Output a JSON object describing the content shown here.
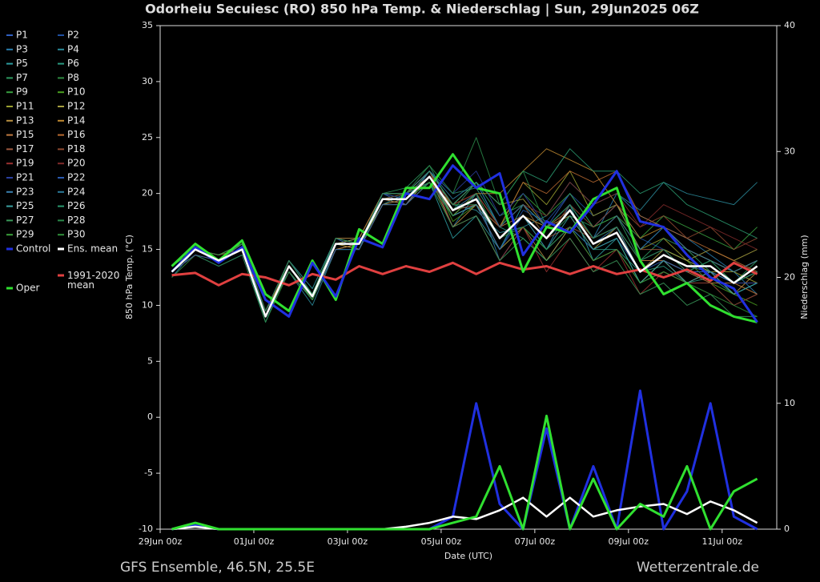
{
  "chart_data": {
    "type": "line",
    "title": "Odorheiu Secuiesc  (RO)  850 hPa Temp. & Niederschlag | Sun, 29Jun2025 06Z",
    "xlabel": "Date (UTC)",
    "ylabel": "850 hPa Temp. (°C)",
    "y2label": "Niederschlag (mm)",
    "source": "GFS Ensemble, 46.5N, 25.5E",
    "credit": "Wetterzentrale.de",
    "x": [
      6,
      18,
      30,
      42,
      54,
      66,
      78,
      90,
      102,
      114,
      126,
      138,
      150,
      162,
      174,
      186,
      198,
      210,
      222,
      234,
      246,
      258,
      270,
      282,
      294,
      306
    ],
    "xlim": [
      0,
      316
    ],
    "xticks": [
      {
        "value": 0,
        "label": "29Jun 00z"
      },
      {
        "value": 48,
        "label": "01Jul 00z"
      },
      {
        "value": 96,
        "label": "03Jul 00z"
      },
      {
        "value": 144,
        "label": "05Jul 00z"
      },
      {
        "value": 192,
        "label": "07Jul 00z"
      },
      {
        "value": 240,
        "label": "09Jul 00z"
      },
      {
        "value": 288,
        "label": "11Jul 00z"
      }
    ],
    "ylim": [
      -10,
      35
    ],
    "yticks": [
      -10,
      -5,
      0,
      5,
      10,
      15,
      20,
      25,
      30,
      35
    ],
    "y2lim": [
      0,
      40
    ],
    "y2ticks": [
      0,
      10,
      20,
      30,
      40
    ],
    "series": [
      {
        "name": "P1",
        "color": "#3060c0",
        "values": [
          13.5,
          15,
          14.5,
          15.5,
          9.5,
          13,
          10.5,
          16,
          15,
          20,
          19,
          22,
          19,
          21,
          17,
          19,
          17,
          20,
          17,
          19,
          15,
          17,
          15,
          14,
          13,
          14
        ]
      },
      {
        "name": "P2",
        "color": "#1f4fa0",
        "values": [
          13,
          14.5,
          13.5,
          14.5,
          8.5,
          13.5,
          11,
          15,
          15.5,
          19,
          19.5,
          21,
          18,
          19,
          15,
          18.5,
          17.5,
          20,
          18,
          19,
          16,
          15,
          14,
          13,
          11,
          12
        ]
      },
      {
        "name": "P3",
        "color": "#2a7fb0",
        "values": [
          12.5,
          15,
          14,
          15,
          9,
          14,
          11,
          15.5,
          16,
          20,
          20,
          22,
          17,
          20,
          14,
          17,
          15,
          19,
          16,
          20,
          18,
          17,
          16,
          14.5,
          13,
          11
        ]
      },
      {
        "name": "P4",
        "color": "#2a8a9a",
        "values": [
          13,
          15.5,
          14,
          15.5,
          9,
          13,
          10,
          15,
          15,
          19.5,
          19,
          21.5,
          19,
          18.5,
          16.5,
          17,
          18,
          21,
          19,
          20,
          18.5,
          21,
          20,
          19.5,
          19,
          21
        ]
      },
      {
        "name": "P5",
        "color": "#2d9ca0",
        "values": [
          13.5,
          15,
          14,
          15,
          9.5,
          14,
          11.5,
          16,
          15.5,
          19,
          20,
          21,
          16,
          18,
          15,
          19,
          17,
          19,
          14,
          16,
          12,
          14,
          13,
          14,
          12,
          13
        ]
      },
      {
        "name": "P6",
        "color": "#2a9a80",
        "values": [
          13,
          15,
          14.5,
          15,
          8.5,
          13.5,
          10.5,
          15.5,
          15,
          20,
          19.5,
          22,
          20,
          20.5,
          17,
          16,
          14,
          17,
          15,
          15,
          13,
          13.5,
          12,
          12.5,
          11,
          12
        ]
      },
      {
        "name": "P7",
        "color": "#2e9a60",
        "values": [
          13.5,
          15.5,
          14,
          15.5,
          9,
          13.5,
          11,
          16,
          16,
          20,
          20.5,
          22.5,
          18.5,
          21,
          18,
          19,
          16,
          18,
          17,
          18,
          14,
          16,
          15,
          13,
          12,
          14
        ]
      },
      {
        "name": "P8",
        "color": "#2e8a40",
        "values": [
          12.5,
          14.5,
          13.5,
          14.5,
          8.5,
          13,
          10.5,
          15,
          15,
          19,
          19,
          21,
          19,
          19,
          15,
          17,
          15,
          17,
          15,
          16,
          12,
          13,
          12,
          12,
          10,
          11
        ]
      },
      {
        "name": "P9",
        "color": "#38a040",
        "values": [
          13,
          15,
          14,
          15,
          9,
          14,
          11,
          15.5,
          15.5,
          19.5,
          20,
          21.5,
          18,
          20,
          17,
          20,
          18,
          20,
          17,
          18,
          16,
          18,
          17,
          16,
          15,
          17
        ]
      },
      {
        "name": "P10",
        "color": "#4aa020",
        "values": [
          13.5,
          15,
          14.5,
          15,
          9.5,
          13.5,
          11,
          15.5,
          15.5,
          19.5,
          19.5,
          22,
          17.5,
          19,
          16,
          18,
          17,
          19,
          16,
          17,
          14,
          15,
          14,
          12,
          11,
          10
        ]
      },
      {
        "name": "P11",
        "color": "#9aa030",
        "values": [
          13,
          15,
          14,
          15.5,
          9,
          13,
          10.5,
          15,
          15.5,
          19,
          19,
          21,
          18,
          20,
          17,
          21,
          19,
          22,
          18,
          19,
          15,
          16,
          14,
          13,
          13,
          12
        ]
      },
      {
        "name": "P12",
        "color": "#a8a040",
        "values": [
          13,
          15,
          14,
          15,
          9,
          13.5,
          11,
          15.5,
          16,
          20,
          20,
          22,
          19,
          21,
          19,
          19.5,
          17,
          18,
          15,
          17,
          13,
          15,
          14,
          15,
          14,
          15
        ]
      },
      {
        "name": "P13",
        "color": "#b89040",
        "values": [
          13.5,
          15,
          14.5,
          15.5,
          9.5,
          14,
          11,
          16,
          15.5,
          19.5,
          19.5,
          21.5,
          17,
          19,
          15,
          17,
          14,
          17,
          14,
          15,
          12,
          14,
          12,
          13,
          11,
          13
        ]
      },
      {
        "name": "P14",
        "color": "#c08a30",
        "values": [
          13,
          14.5,
          14,
          15,
          9,
          13.5,
          10.5,
          15.5,
          15,
          19,
          19.5,
          21,
          19,
          20,
          20,
          22,
          24,
          23,
          22,
          19,
          16,
          17,
          15,
          14,
          13,
          14
        ]
      },
      {
        "name": "P15",
        "color": "#c07a40",
        "values": [
          13,
          15,
          14,
          15,
          9,
          13,
          10.5,
          15,
          15.5,
          19.5,
          19,
          21.5,
          18,
          19,
          17,
          18,
          17,
          18.5,
          16,
          17,
          14,
          14,
          13,
          12,
          12,
          11
        ]
      },
      {
        "name": "P16",
        "color": "#b86a30",
        "values": [
          13.5,
          15.5,
          14,
          15.5,
          9.5,
          13.5,
          11,
          16,
          16,
          20,
          20,
          22,
          18,
          20,
          17,
          21,
          20,
          22,
          21,
          22,
          18,
          17,
          16,
          15,
          14,
          13
        ]
      },
      {
        "name": "P17",
        "color": "#a05a40",
        "values": [
          13,
          15,
          14,
          15,
          9,
          13.5,
          10.5,
          15.5,
          15.5,
          19.5,
          19.5,
          21,
          18.5,
          19,
          16,
          18,
          16,
          17,
          16,
          18,
          15,
          15,
          13,
          13,
          12,
          12
        ]
      },
      {
        "name": "P18",
        "color": "#904a30",
        "values": [
          13,
          15,
          14.5,
          15,
          9,
          13.5,
          11,
          15.5,
          15.5,
          19.5,
          20,
          21.5,
          19,
          20,
          17,
          19,
          16,
          19,
          17,
          19,
          17,
          18,
          16,
          17,
          15,
          16
        ]
      },
      {
        "name": "P19",
        "color": "#9a3030",
        "values": [
          13,
          15,
          14,
          15,
          9,
          13.5,
          11,
          15.5,
          15.5,
          19.5,
          19.5,
          22,
          17,
          18,
          14,
          17,
          13,
          16,
          13,
          15,
          11,
          13,
          12,
          12,
          10,
          11
        ]
      },
      {
        "name": "P20",
        "color": "#802a2a",
        "values": [
          13.5,
          15,
          14,
          15,
          9,
          13.5,
          10.5,
          15.5,
          15.5,
          19.5,
          19.5,
          21.5,
          19,
          20,
          17,
          19,
          18,
          21,
          19,
          20,
          17,
          19,
          18,
          17,
          16,
          15
        ]
      },
      {
        "name": "P21",
        "color": "#2a40a0",
        "values": [
          13,
          15,
          14,
          15,
          9.5,
          14,
          11,
          15.5,
          15.5,
          20,
          19.5,
          22,
          20,
          22,
          18,
          20,
          17,
          19,
          16,
          17,
          14,
          15,
          13,
          13,
          12,
          12
        ]
      },
      {
        "name": "P22",
        "color": "#2a5ab0",
        "values": [
          13,
          14.5,
          14,
          15,
          9,
          13,
          10.5,
          15,
          15,
          19,
          19,
          21,
          18,
          19,
          15,
          18,
          15,
          17,
          15,
          16,
          13,
          14,
          13,
          13,
          12,
          13
        ]
      },
      {
        "name": "P23",
        "color": "#3a80b0",
        "values": [
          13,
          15,
          14,
          15,
          9,
          13.5,
          11,
          15.5,
          15.5,
          19.5,
          19.5,
          21.5,
          18.5,
          20,
          16,
          18,
          16,
          18.5,
          15.5,
          17,
          13,
          14.5,
          13.5,
          13,
          12,
          13
        ]
      },
      {
        "name": "P24",
        "color": "#2a7a9a",
        "values": [
          13.5,
          15,
          14,
          15.5,
          9,
          13.5,
          11,
          16,
          15.5,
          20,
          20,
          22,
          19.5,
          21,
          17,
          19,
          17,
          19,
          16,
          18,
          15,
          17,
          15,
          14,
          13,
          14
        ]
      },
      {
        "name": "P25",
        "color": "#3aa0a0",
        "values": [
          13,
          15,
          14,
          15,
          9,
          13.5,
          10.5,
          15.5,
          15.5,
          19.5,
          19.5,
          21.5,
          18,
          19,
          16,
          18,
          15,
          18,
          15,
          16,
          12,
          14,
          12,
          13,
          11,
          12
        ]
      },
      {
        "name": "P26",
        "color": "#2a9a70",
        "values": [
          13,
          15,
          14,
          15,
          9,
          13.5,
          11,
          15.5,
          15.5,
          19.5,
          19.5,
          22,
          19,
          21,
          19,
          22,
          21,
          24,
          22,
          22,
          20,
          21,
          19,
          18,
          17,
          16
        ]
      },
      {
        "name": "P27",
        "color": "#3a9a5a",
        "values": [
          13,
          15,
          14,
          15,
          9,
          13.5,
          10.8,
          15.5,
          15.5,
          19.5,
          19.5,
          21,
          17,
          18,
          14,
          16,
          14,
          16,
          13,
          14,
          11,
          12,
          10,
          11,
          9,
          9
        ]
      },
      {
        "name": "P28",
        "color": "#2a8a4a",
        "values": [
          13.5,
          15,
          14.5,
          15.5,
          9.5,
          14,
          11,
          16,
          15.5,
          20,
          20,
          22.5,
          20,
          25,
          19,
          22,
          17,
          19,
          16,
          17,
          14,
          15,
          13,
          14,
          12,
          13
        ]
      },
      {
        "name": "P29",
        "color": "#3aa03a",
        "values": [
          13,
          15,
          14,
          15,
          9,
          13.5,
          10.5,
          15.5,
          15.5,
          19.5,
          19.5,
          21.5,
          18.5,
          19.5,
          16,
          18,
          16,
          18.5,
          15.5,
          16.5,
          13,
          14.5,
          13.5,
          13.5,
          12,
          13.5
        ]
      },
      {
        "name": "P30",
        "color": "#30903a",
        "values": [
          13,
          15,
          14,
          15,
          9,
          13,
          10.5,
          15.5,
          15.5,
          19.5,
          19.5,
          21,
          18,
          20,
          16,
          17,
          15,
          17,
          14,
          15,
          12,
          13,
          12,
          11,
          10,
          9
        ]
      },
      {
        "name": "Control",
        "color": "#2030e0",
        "values": [
          13,
          15.2,
          13.8,
          15.2,
          10.5,
          9,
          13.8,
          10.8,
          16,
          15.2,
          20,
          19.5,
          22.5,
          20.5,
          21.8,
          14.5,
          17.5,
          16.5,
          19,
          22,
          17.5,
          17,
          14.5,
          12.5,
          11.5,
          8.5
        ]
      },
      {
        "name": "Ens. mean",
        "color": "#ffffff",
        "values": [
          13,
          15,
          14,
          15,
          9,
          13.5,
          10.8,
          15.5,
          15.5,
          19.5,
          19.5,
          21.5,
          18.5,
          19.5,
          16,
          18,
          16,
          18.5,
          15.5,
          16.5,
          13,
          14.5,
          13.5,
          13.5,
          12,
          13.5
        ]
      },
      {
        "name": "1991-2020 mean",
        "color": "#e04040",
        "values": [
          12.7,
          12.9,
          11.8,
          12.8,
          12.5,
          11.8,
          12.8,
          12.3,
          13.5,
          12.8,
          13.5,
          13,
          13.8,
          12.8,
          13.8,
          13.2,
          13.5,
          12.8,
          13.5,
          12.8,
          13.2,
          12.5,
          13.2,
          12.2,
          13.8,
          12.8
        ]
      },
      {
        "name": "Oper",
        "color": "#30e030",
        "values": [
          13.5,
          15.5,
          14,
          15.8,
          11,
          9.5,
          14,
          10.5,
          16.8,
          15.5,
          20.5,
          20.5,
          23.5,
          20.5,
          20,
          13,
          17,
          16.5,
          19.5,
          20.5,
          14,
          11,
          12,
          10,
          9,
          8.5
        ]
      },
      {
        "name": "Control",
        "color": "#2030e0",
        "axis": "y2",
        "values": [
          0,
          0.3,
          0,
          0,
          0,
          0,
          0,
          0,
          0,
          0,
          0,
          0,
          1,
          10,
          2,
          0,
          8,
          0,
          5,
          0,
          11,
          0,
          3,
          10,
          1,
          0
        ]
      },
      {
        "name": "Ens. mean",
        "color": "#ffffff",
        "axis": "y2",
        "values": [
          0,
          0.2,
          0,
          0,
          0,
          0,
          0,
          0,
          0,
          0,
          0.2,
          0.5,
          1,
          0.8,
          1.5,
          2.5,
          1,
          2.5,
          1,
          1.5,
          1.8,
          2,
          1.2,
          2.2,
          1.5,
          0.5
        ]
      },
      {
        "name": "Oper",
        "color": "#30e030",
        "axis": "y2",
        "values": [
          0,
          0.5,
          0,
          0,
          0,
          0,
          0,
          0,
          0,
          0,
          0,
          0,
          0.5,
          1,
          5,
          0,
          9,
          0,
          4,
          0,
          2,
          1,
          5,
          0,
          3,
          4
        ]
      }
    ]
  }
}
